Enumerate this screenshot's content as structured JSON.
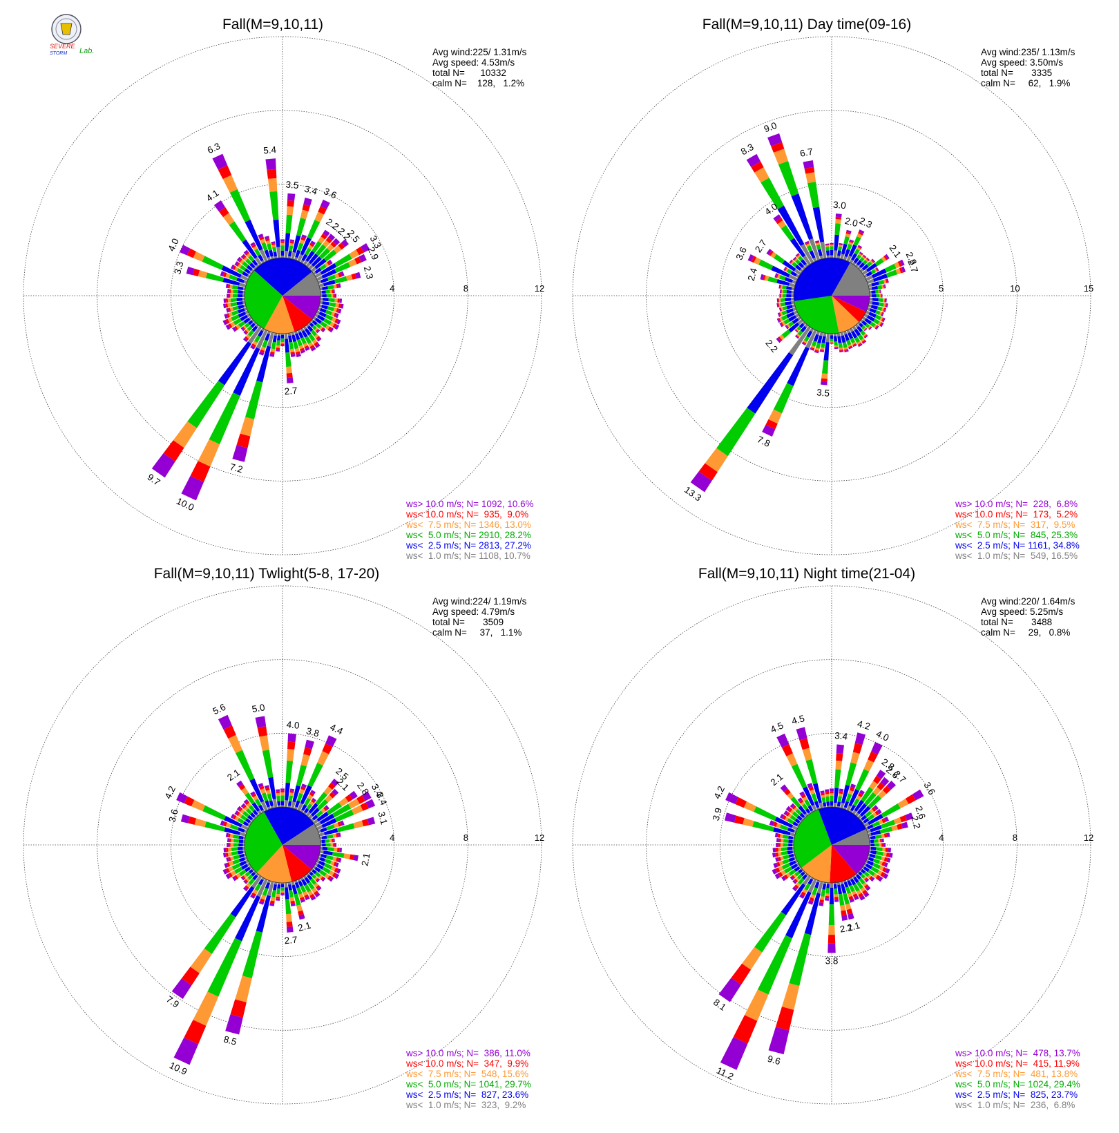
{
  "logo": {
    "text_line1": "SEVERE",
    "text_line2": "STORM",
    "text_line3": "Lab."
  },
  "colors": {
    "gt10": "#9400d3",
    "lt10": "#ff0000",
    "lt75": "#ff9933",
    "lt5": "#00cc00",
    "lt25": "#0000ee",
    "lt1": "#808080"
  },
  "chart_data": [
    {
      "type": "wind_rose",
      "title": "Fall(M=9,10,11)",
      "rings": [
        "4",
        "8",
        "12"
      ],
      "rmax": 12,
      "stats": [
        "Avg wind:225/ 1.31m/s",
        "Avg speed: 4.53m/s",
        "total N=      10332",
        "calm N=    128,   1.2%"
      ],
      "legend": [
        {
          "label": "ws> 10.0 m/s; N=",
          "value": "1092, 10.6%"
        },
        {
          "label": "ws< 10.0 m/s; N=",
          "value": " 935,  9.0%"
        },
        {
          "label": "ws<  7.5 m/s; N=",
          "value": "1346, 13.0%"
        },
        {
          "label": "ws<  5.0 m/s; N=",
          "value": "2910, 28.2%"
        },
        {
          "label": "ws<  2.5 m/s; N=",
          "value": "2813, 27.2%"
        },
        {
          "label": "ws<  1.0 m/s; N=",
          "value": "1108, 10.7%"
        }
      ],
      "pie": [
        10.6,
        9.0,
        13.0,
        28.2,
        27.2,
        10.7
      ],
      "bar_labels": [
        {
          "dir": 5,
          "text": "3.5"
        },
        {
          "dir": 15,
          "text": "3.4"
        },
        {
          "dir": 25,
          "text": "3.6"
        },
        {
          "dir": 35,
          "text": "2.2"
        },
        {
          "dir": 40,
          "text": "2.2"
        },
        {
          "dir": 45,
          "text": "2.2"
        },
        {
          "dir": 50,
          "text": "2.5"
        },
        {
          "dir": 60,
          "text": "3.3"
        },
        {
          "dir": 65,
          "text": "2.9"
        },
        {
          "dir": 75,
          "text": "2.3"
        },
        {
          "dir": 175,
          "text": "2.7"
        },
        {
          "dir": 195,
          "text": "7.2"
        },
        {
          "dir": 205,
          "text": "10.0"
        },
        {
          "dir": 215,
          "text": "9.7"
        },
        {
          "dir": 285,
          "text": "3.3"
        },
        {
          "dir": 295,
          "text": "4.0"
        },
        {
          "dir": 325,
          "text": "4.1"
        },
        {
          "dir": 335,
          "text": "6.3"
        },
        {
          "dir": 355,
          "text": "5.4"
        }
      ]
    },
    {
      "type": "wind_rose",
      "title": "Fall(M=9,10,11) Day time(09-16)",
      "rings": [
        "5",
        "10",
        "15"
      ],
      "rmax": 15,
      "stats": [
        "Avg wind:235/ 1.13m/s",
        "Avg speed: 3.50m/s",
        "total N=       3335",
        "calm N=     62,   1.9%"
      ],
      "legend": [
        {
          "label": "ws> 10.0 m/s; N=",
          "value": " 228,  6.8%"
        },
        {
          "label": "ws< 10.0 m/s; N=",
          "value": " 173,  5.2%"
        },
        {
          "label": "ws<  7.5 m/s; N=",
          "value": " 317,  9.5%"
        },
        {
          "label": "ws<  5.0 m/s; N=",
          "value": " 845, 25.3%"
        },
        {
          "label": "ws<  2.5 m/s; N=",
          "value": "1161, 34.8%"
        },
        {
          "label": "ws<  1.0 m/s; N=",
          "value": " 549, 16.5%"
        }
      ],
      "pie": [
        6.8,
        5.2,
        9.5,
        25.3,
        34.8,
        16.5
      ],
      "bar_labels": [
        {
          "dir": 5,
          "text": "3.0"
        },
        {
          "dir": 15,
          "text": "2.0"
        },
        {
          "dir": 25,
          "text": "2.3"
        },
        {
          "dir": 55,
          "text": "2.1"
        },
        {
          "dir": 65,
          "text": "2.8"
        },
        {
          "dir": 70,
          "text": "2.7"
        },
        {
          "dir": 185,
          "text": "3.5"
        },
        {
          "dir": 205,
          "text": "7.8"
        },
        {
          "dir": 215,
          "text": "13.3"
        },
        {
          "dir": 230,
          "text": "2.2"
        },
        {
          "dir": 285,
          "text": "2.4"
        },
        {
          "dir": 295,
          "text": "3.6"
        },
        {
          "dir": 305,
          "text": "2.7"
        },
        {
          "dir": 325,
          "text": "4.0"
        },
        {
          "dir": 330,
          "text": "8.3"
        },
        {
          "dir": 340,
          "text": "9.0"
        },
        {
          "dir": 350,
          "text": "6.7"
        }
      ]
    },
    {
      "type": "wind_rose",
      "title": "Fall(M=9,10,11) Twlight(5-8, 17-20)",
      "rings": [
        "4",
        "8",
        "12"
      ],
      "rmax": 12,
      "stats": [
        "Avg wind:224/ 1.19m/s",
        "Avg speed: 4.79m/s",
        "total N=       3509",
        "calm N=     37,   1.1%"
      ],
      "legend": [
        {
          "label": "ws> 10.0 m/s; N=",
          "value": " 386, 11.0%"
        },
        {
          "label": "ws< 10.0 m/s; N=",
          "value": " 347,  9.9%"
        },
        {
          "label": "ws<  7.5 m/s; N=",
          "value": " 548, 15.6%"
        },
        {
          "label": "ws<  5.0 m/s; N=",
          "value": "1041, 29.7%"
        },
        {
          "label": "ws<  2.5 m/s; N=",
          "value": " 827, 23.6%"
        },
        {
          "label": "ws<  1.0 m/s; N=",
          "value": " 323,  9.2%"
        }
      ],
      "pie": [
        11.0,
        9.9,
        15.6,
        29.7,
        23.6,
        9.2
      ],
      "bar_labels": [
        {
          "dir": 5,
          "text": "4.0"
        },
        {
          "dir": 15,
          "text": "3.8"
        },
        {
          "dir": 25,
          "text": "4.4"
        },
        {
          "dir": 40,
          "text": "2.5"
        },
        {
          "dir": 45,
          "text": "2.1"
        },
        {
          "dir": 55,
          "text": "2.8"
        },
        {
          "dir": 60,
          "text": "3.4"
        },
        {
          "dir": 65,
          "text": "3.4"
        },
        {
          "dir": 75,
          "text": "3.1"
        },
        {
          "dir": 100,
          "text": "2.1"
        },
        {
          "dir": 165,
          "text": "2.1"
        },
        {
          "dir": 175,
          "text": "2.7"
        },
        {
          "dir": 195,
          "text": "8.5"
        },
        {
          "dir": 205,
          "text": "10.9"
        },
        {
          "dir": 215,
          "text": "7.9"
        },
        {
          "dir": 285,
          "text": "3.6"
        },
        {
          "dir": 295,
          "text": "4.2"
        },
        {
          "dir": 325,
          "text": "2.1"
        },
        {
          "dir": 335,
          "text": "5.6"
        },
        {
          "dir": 350,
          "text": "5.0"
        }
      ]
    },
    {
      "type": "wind_rose",
      "title": "Fall(M=9,10,11) Night time(21-04)",
      "rings": [
        "4",
        "8",
        "12"
      ],
      "rmax": 12,
      "stats": [
        "Avg wind:220/ 1.64m/s",
        "Avg speed: 5.25m/s",
        "total N=       3488",
        "calm N=     29,   0.8%"
      ],
      "legend": [
        {
          "label": "ws> 10.0 m/s; N=",
          "value": " 478, 13.7%"
        },
        {
          "label": "ws< 10.0 m/s; N=",
          "value": " 415, 11.9%"
        },
        {
          "label": "ws<  7.5 m/s; N=",
          "value": " 481, 13.8%"
        },
        {
          "label": "ws<  5.0 m/s; N=",
          "value": "1024, 29.4%"
        },
        {
          "label": "ws<  2.5 m/s; N=",
          "value": " 825, 23.7%"
        },
        {
          "label": "ws<  1.0 m/s; N=",
          "value": " 236,  6.8%"
        }
      ],
      "pie": [
        13.7,
        11.9,
        13.8,
        29.4,
        23.7,
        6.8
      ],
      "bar_labels": [
        {
          "dir": 5,
          "text": "3.4"
        },
        {
          "dir": 15,
          "text": "4.2"
        },
        {
          "dir": 25,
          "text": "4.0"
        },
        {
          "dir": 35,
          "text": "2.8"
        },
        {
          "dir": 40,
          "text": "2.6"
        },
        {
          "dir": 45,
          "text": "2.7"
        },
        {
          "dir": 60,
          "text": "3.6"
        },
        {
          "dir": 70,
          "text": "2.6"
        },
        {
          "dir": 75,
          "text": "2.2"
        },
        {
          "dir": 165,
          "text": "2.1"
        },
        {
          "dir": 170,
          "text": "2.1"
        },
        {
          "dir": 180,
          "text": "3.8"
        },
        {
          "dir": 195,
          "text": "9.6"
        },
        {
          "dir": 205,
          "text": "11.2"
        },
        {
          "dir": 215,
          "text": "8.1"
        },
        {
          "dir": 285,
          "text": "3.9"
        },
        {
          "dir": 295,
          "text": "4.2"
        },
        {
          "dir": 320,
          "text": "2.1"
        },
        {
          "dir": 335,
          "text": "4.5"
        },
        {
          "dir": 345,
          "text": "4.5"
        }
      ]
    }
  ]
}
